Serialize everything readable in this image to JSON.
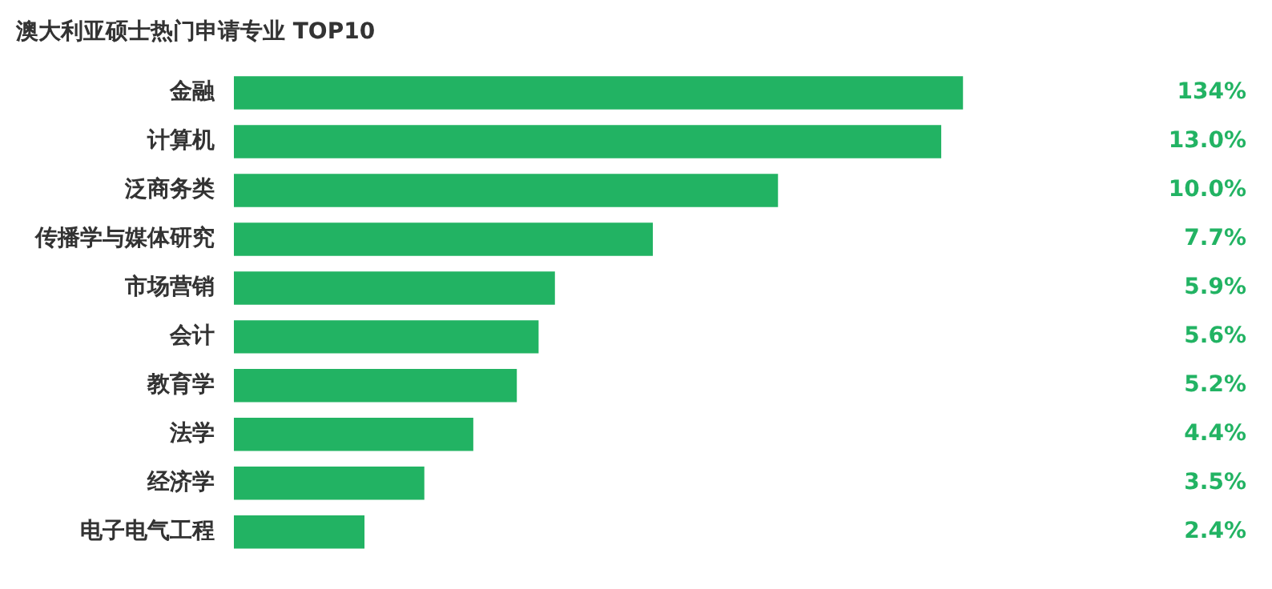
{
  "chart_data": {
    "type": "bar",
    "orientation": "horizontal",
    "title": "澳大利亚硕士热门申请专业 TOP10",
    "categories": [
      "金融",
      "计算机",
      "泛商务类",
      "传播学与媒体研究",
      "市场营销",
      "会计",
      "教育学",
      "法学",
      "经济学",
      "电子电气工程"
    ],
    "values": [
      13.4,
      13.0,
      10.0,
      7.7,
      5.9,
      5.6,
      5.2,
      4.4,
      3.5,
      2.4
    ],
    "value_labels": [
      null,
      "13.0%",
      "10.0%",
      "7.7%",
      "5.9%",
      "5.6%",
      "5.2%",
      "4.4%",
      "3.5%",
      "2.4%"
    ],
    "annotations": [
      "134%"
    ],
    "color": "#22b363",
    "grid": false,
    "legend": false
  }
}
